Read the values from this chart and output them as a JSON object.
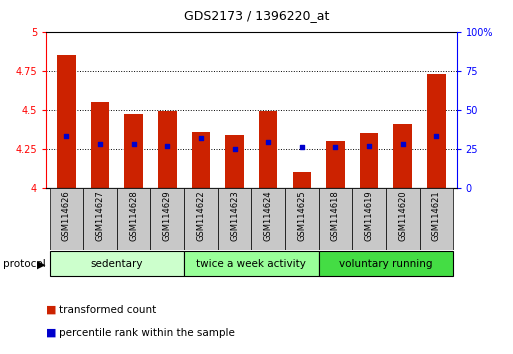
{
  "title": "GDS2173 / 1396220_at",
  "samples": [
    "GSM114626",
    "GSM114627",
    "GSM114628",
    "GSM114629",
    "GSM114622",
    "GSM114623",
    "GSM114624",
    "GSM114625",
    "GSM114618",
    "GSM114619",
    "GSM114620",
    "GSM114621"
  ],
  "transformed_count": [
    4.85,
    4.55,
    4.47,
    4.49,
    4.36,
    4.34,
    4.49,
    4.1,
    4.3,
    4.35,
    4.41,
    4.73
  ],
  "percentile_rank": [
    33,
    28,
    28,
    27,
    32,
    25,
    29,
    26,
    26,
    27,
    28,
    33
  ],
  "groups": [
    {
      "label": "sedentary",
      "indices": [
        0,
        1,
        2,
        3
      ],
      "color": "#ccffcc"
    },
    {
      "label": "twice a week activity",
      "indices": [
        4,
        5,
        6,
        7
      ],
      "color": "#99ff99"
    },
    {
      "label": "voluntary running",
      "indices": [
        8,
        9,
        10,
        11
      ],
      "color": "#44dd44"
    }
  ],
  "ylim_left": [
    4.0,
    5.0
  ],
  "ylim_right": [
    0,
    100
  ],
  "yticks_left": [
    4.0,
    4.25,
    4.5,
    4.75,
    5.0
  ],
  "yticks_right": [
    0,
    25,
    50,
    75,
    100
  ],
  "bar_color": "#cc2200",
  "dot_color": "#0000cc",
  "bar_width": 0.55,
  "legend_items": [
    {
      "label": "transformed count",
      "color": "#cc2200"
    },
    {
      "label": "percentile rank within the sample",
      "color": "#0000cc"
    }
  ]
}
